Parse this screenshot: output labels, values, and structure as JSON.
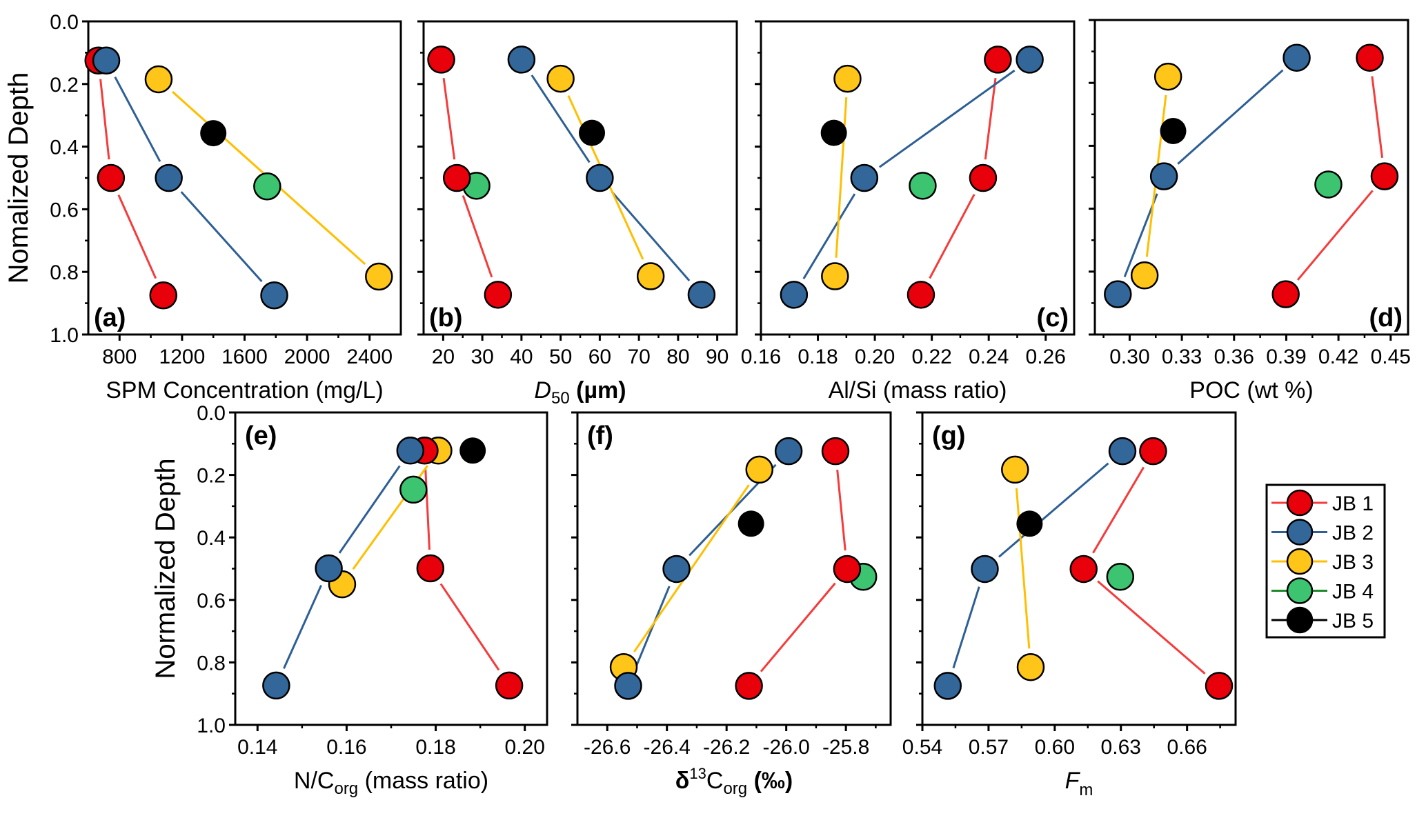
{
  "figure": {
    "series_styles": [
      {
        "name": "JB 1",
        "fill": "#e8000b",
        "line": "#f53b3b"
      },
      {
        "name": "JB 2",
        "fill": "#336699",
        "line": "#2e5f94"
      },
      {
        "name": "JB 3",
        "fill": "#ffc619",
        "line": "#ffbf00"
      },
      {
        "name": "JB 4",
        "fill": "#3cc470",
        "line": "#1a8a2a"
      },
      {
        "name": "JB 5",
        "fill": "#000000",
        "line": "#000000"
      }
    ],
    "legend": {
      "placement": "right-middle",
      "entries": [
        "JB 1",
        "JB 2",
        "JB 3",
        "JB 4",
        "JB 5"
      ]
    }
  },
  "chart_data": [
    {
      "type": "scatter",
      "panel": "(a)",
      "label_pos": "bottom-left",
      "title": "",
      "xlabel": "SPM Concentration (mg/L)",
      "ylabel": "Nomalized Depth",
      "xlim": [
        600,
        2600
      ],
      "ylim": [
        0.0,
        1.0
      ],
      "y_inverted": true,
      "xticks": [
        800,
        1200,
        1600,
        2000,
        2400
      ],
      "xtick_labels": [
        "800",
        "1200",
        "1600",
        "2000",
        "2400"
      ],
      "xminor": [
        1000,
        1400,
        1800,
        2200
      ],
      "yticks": [
        0.0,
        0.2,
        0.4,
        0.6,
        0.8,
        1.0
      ],
      "ytick_labels": [
        "0.0",
        "0.2",
        "0.4",
        "0.6",
        "0.8",
        "1.0"
      ],
      "show_yticklabels": true,
      "series": [
        {
          "name": "JB 1",
          "connected": true,
          "points": [
            [
              665,
              0.125
            ],
            [
              745,
              0.5
            ],
            [
              1080,
              0.875
            ]
          ]
        },
        {
          "name": "JB 2",
          "connected": true,
          "points": [
            [
              715,
              0.125
            ],
            [
              1115,
              0.5
            ],
            [
              1790,
              0.875
            ]
          ]
        },
        {
          "name": "JB 3",
          "connected": true,
          "points": [
            [
              1050,
              0.185
            ],
            [
              2460,
              0.815
            ]
          ]
        },
        {
          "name": "JB 4",
          "connected": false,
          "points": [
            [
              1745,
              0.527
            ]
          ]
        },
        {
          "name": "JB 5",
          "connected": false,
          "points": [
            [
              1400,
              0.357
            ]
          ]
        }
      ]
    },
    {
      "type": "scatter",
      "panel": "(b)",
      "label_pos": "bottom-left",
      "title": "",
      "xlabel": "D50 (µm)",
      "xlabel_italic": "D",
      "xlabel_sub": "50",
      "xlabel_rest": " (µm)",
      "ylabel": "",
      "xlim": [
        15,
        95
      ],
      "ylim": [
        0.0,
        1.0
      ],
      "y_inverted": true,
      "xticks": [
        20,
        30,
        40,
        50,
        60,
        70,
        80,
        90
      ],
      "xtick_labels": [
        "20",
        "30",
        "40",
        "50",
        "60",
        "70",
        "80",
        "90"
      ],
      "xminor": [
        25,
        35,
        45,
        55,
        65,
        75,
        85
      ],
      "yticks": [
        0.0,
        0.2,
        0.4,
        0.6,
        0.8,
        1.0
      ],
      "ytick_labels": [],
      "show_yticklabels": false,
      "series": [
        {
          "name": "JB 1",
          "connected": true,
          "points": [
            [
              19.5,
              0.122
            ],
            [
              23.5,
              0.5
            ],
            [
              34,
              0.873
            ]
          ]
        },
        {
          "name": "JB 2",
          "connected": true,
          "points": [
            [
              40,
              0.122
            ],
            [
              60,
              0.5
            ],
            [
              86,
              0.873
            ]
          ]
        },
        {
          "name": "JB 3",
          "connected": true,
          "points": [
            [
              50,
              0.183
            ],
            [
              73,
              0.814
            ]
          ]
        },
        {
          "name": "JB 4",
          "connected": false,
          "points": [
            [
              28.5,
              0.525
            ]
          ]
        },
        {
          "name": "JB 5",
          "connected": false,
          "points": [
            [
              58,
              0.356
            ]
          ]
        }
      ]
    },
    {
      "type": "scatter",
      "panel": "(c)",
      "label_pos": "bottom-right",
      "title": "",
      "xlabel": "Al/Si (mass ratio)",
      "ylabel": "",
      "xlim": [
        0.16,
        0.27
      ],
      "ylim": [
        0.0,
        1.0
      ],
      "y_inverted": true,
      "xticks": [
        0.16,
        0.18,
        0.2,
        0.22,
        0.24,
        0.26
      ],
      "xtick_labels": [
        "0.16",
        "0.18",
        "0.20",
        "0.22",
        "0.24",
        "0.26"
      ],
      "xminor": [
        0.17,
        0.19,
        0.21,
        0.23,
        0.25
      ],
      "yticks": [
        0.0,
        0.2,
        0.4,
        0.6,
        0.8,
        1.0
      ],
      "ytick_labels": [],
      "show_yticklabels": false,
      "series": [
        {
          "name": "JB 1",
          "connected": true,
          "points": [
            [
              0.2432,
              0.122
            ],
            [
              0.238,
              0.5
            ],
            [
              0.2162,
              0.873
            ]
          ]
        },
        {
          "name": "JB 2",
          "connected": true,
          "points": [
            [
              0.2544,
              0.122
            ],
            [
              0.1963,
              0.5
            ],
            [
              0.1716,
              0.873
            ]
          ]
        },
        {
          "name": "JB 3",
          "connected": true,
          "points": [
            [
              0.1904,
              0.183
            ],
            [
              0.186,
              0.814
            ]
          ]
        },
        {
          "name": "JB 4",
          "connected": false,
          "points": [
            [
              0.2168,
              0.525
            ]
          ]
        },
        {
          "name": "JB 5",
          "connected": false,
          "points": [
            [
              0.1856,
              0.356
            ]
          ]
        }
      ]
    },
    {
      "type": "scatter",
      "panel": "(d)",
      "label_pos": "bottom-right",
      "title": "",
      "xlabel": "POC (wt %)",
      "ylabel": "",
      "xlim": [
        0.28,
        0.46
      ],
      "ylim": [
        0.0,
        1.0
      ],
      "y_inverted": true,
      "xticks": [
        0.3,
        0.33,
        0.36,
        0.39,
        0.42,
        0.45
      ],
      "xtick_labels": [
        "0.30",
        "0.33",
        "0.36",
        "0.39",
        "0.42",
        "0.45"
      ],
      "xminor": [
        0.285,
        0.315,
        0.345,
        0.375,
        0.405,
        0.435
      ],
      "yticks": [
        0.0,
        0.2,
        0.4,
        0.6,
        0.8,
        1.0
      ],
      "ytick_labels": [],
      "show_yticklabels": false,
      "series": [
        {
          "name": "JB 1",
          "connected": true,
          "points": [
            [
              0.438,
              0.12
            ],
            [
              0.4465,
              0.497
            ],
            [
              0.3897,
              0.872
            ]
          ]
        },
        {
          "name": "JB 2",
          "connected": true,
          "points": [
            [
              0.396,
              0.12
            ],
            [
              0.3197,
              0.497
            ],
            [
              0.2932,
              0.872
            ]
          ]
        },
        {
          "name": "JB 3",
          "connected": true,
          "points": [
            [
              0.3221,
              0.18
            ],
            [
              0.3086,
              0.812
            ]
          ]
        },
        {
          "name": "JB 4",
          "connected": false,
          "points": [
            [
              0.4142,
              0.523
            ]
          ]
        },
        {
          "name": "JB 5",
          "connected": false,
          "points": [
            [
              0.325,
              0.353
            ]
          ]
        }
      ]
    },
    {
      "type": "scatter",
      "panel": "(e)",
      "label_pos": "top-left",
      "title": "",
      "xlabel": "N/Corg (mass ratio)",
      "xlabel_main": "N/C",
      "xlabel_sub": "org",
      "xlabel_rest": " (mass ratio)",
      "ylabel": "Normalized Depth",
      "xlim": [
        0.135,
        0.205
      ],
      "ylim": [
        0.0,
        1.0
      ],
      "y_inverted": true,
      "xticks": [
        0.14,
        0.16,
        0.18,
        0.2
      ],
      "xtick_labels": [
        "0.14",
        "0.16",
        "0.18",
        "0.20"
      ],
      "xminor": [
        0.15,
        0.17,
        0.19
      ],
      "yticks": [
        0.0,
        0.2,
        0.4,
        0.6,
        0.8,
        1.0
      ],
      "ytick_labels": [
        "0.0",
        "0.2",
        "0.4",
        "0.6",
        "0.8",
        "1.0"
      ],
      "show_yticklabels": true,
      "series": [
        {
          "name": "JB 1",
          "connected": true,
          "points": [
            [
              0.1775,
              0.122
            ],
            [
              0.1788,
              0.499
            ],
            [
              0.1965,
              0.874
            ]
          ]
        },
        {
          "name": "JB 2",
          "connected": true,
          "points": [
            [
              0.1743,
              0.122
            ],
            [
              0.156,
              0.499
            ],
            [
              0.1442,
              0.874
            ]
          ]
        },
        {
          "name": "JB 3",
          "connected": true,
          "points": [
            [
              0.1806,
              0.122
            ],
            [
              0.159,
              0.55
            ]
          ]
        },
        {
          "name": "JB 4",
          "connected": false,
          "points": [
            [
              0.175,
              0.247
            ]
          ]
        },
        {
          "name": "JB 5",
          "connected": false,
          "points": [
            [
              0.1883,
              0.122
            ]
          ]
        }
      ]
    },
    {
      "type": "scatter",
      "panel": "(f)",
      "label_pos": "top-left",
      "title": "",
      "xlabel": "δ13Corg (‰)",
      "xlabel_main": "δ",
      "xlabel_sup": "13",
      "xlabel_c": "C",
      "xlabel_sub": "org",
      "xlabel_rest": " (‰)",
      "ylabel": "",
      "xlim": [
        -26.7,
        -25.65
      ],
      "ylim": [
        0.0,
        1.0
      ],
      "y_inverted": true,
      "xticks": [
        -26.6,
        -26.4,
        -26.2,
        -26.0,
        -25.8
      ],
      "xtick_labels": [
        "-26.6",
        "-26.4",
        "-26.2",
        "-26.0",
        "-25.8"
      ],
      "xminor": [
        -26.5,
        -26.3,
        -26.1,
        -25.9,
        -25.7
      ],
      "yticks": [
        0.0,
        0.2,
        0.4,
        0.6,
        0.8,
        1.0
      ],
      "ytick_labels": [],
      "show_yticklabels": false,
      "series": [
        {
          "name": "JB 1",
          "connected": true,
          "points": [
            [
              -25.835,
              0.124
            ],
            [
              -25.796,
              0.501
            ],
            [
              -26.125,
              0.875
            ]
          ]
        },
        {
          "name": "JB 2",
          "connected": true,
          "points": [
            [
              -25.992,
              0.124
            ],
            [
              -26.368,
              0.501
            ],
            [
              -26.53,
              0.875
            ]
          ]
        },
        {
          "name": "JB 3",
          "connected": true,
          "points": [
            [
              -26.09,
              0.183
            ],
            [
              -26.545,
              0.815
            ]
          ]
        },
        {
          "name": "JB 4",
          "connected": false,
          "points": [
            [
              -25.742,
              0.526
            ]
          ]
        },
        {
          "name": "JB 5",
          "connected": false,
          "points": [
            [
              -26.118,
              0.356
            ]
          ]
        }
      ]
    },
    {
      "type": "scatter",
      "panel": "(g)",
      "label_pos": "top-left",
      "title": "",
      "xlabel": "Fm",
      "xlabel_italic": "F",
      "xlabel_sub": "m",
      "ylabel": "",
      "xlim": [
        0.54,
        0.682
      ],
      "ylim": [
        0.0,
        1.0
      ],
      "y_inverted": true,
      "xticks": [
        0.54,
        0.57,
        0.6,
        0.63,
        0.66
      ],
      "xtick_labels": [
        "0.54",
        "0.57",
        "0.60",
        "0.63",
        "0.66"
      ],
      "xminor": [
        0.555,
        0.585,
        0.615,
        0.645,
        0.675
      ],
      "yticks": [
        0.0,
        0.2,
        0.4,
        0.6,
        0.8,
        1.0
      ],
      "ytick_labels": [],
      "show_yticklabels": false,
      "series": [
        {
          "name": "JB 1",
          "connected": true,
          "points": [
            [
              0.6446,
              0.124
            ],
            [
              0.6131,
              0.501
            ],
            [
              0.6745,
              0.875
            ]
          ]
        },
        {
          "name": "JB 2",
          "connected": true,
          "points": [
            [
              0.6307,
              0.124
            ],
            [
              0.5683,
              0.501
            ],
            [
              0.5515,
              0.875
            ]
          ]
        },
        {
          "name": "JB 3",
          "connected": true,
          "points": [
            [
              0.582,
              0.183
            ],
            [
              0.5891,
              0.815
            ]
          ]
        },
        {
          "name": "JB 4",
          "connected": false,
          "points": [
            [
              0.6297,
              0.526
            ]
          ]
        },
        {
          "name": "JB 5",
          "connected": false,
          "points": [
            [
              0.5886,
              0.356
            ]
          ]
        }
      ]
    }
  ]
}
